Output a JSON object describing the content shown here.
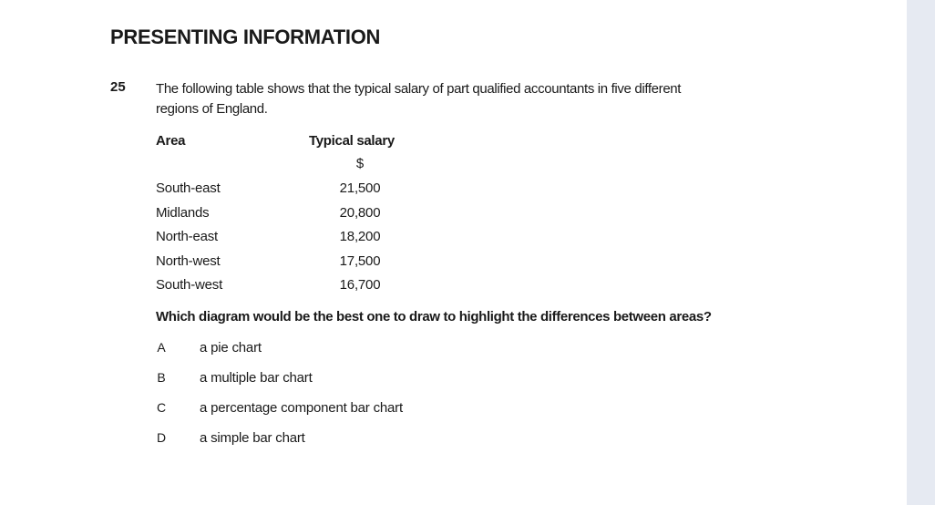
{
  "heading": "PRESENTING INFORMATION",
  "question": {
    "number": "25",
    "text_line1": "The following table shows that the typical salary of part qualified accountants in five different",
    "text_line2": "regions of England.",
    "table": {
      "headers": [
        "Area",
        "Typical salary"
      ],
      "unit": "$",
      "rows": [
        {
          "area": "South-east",
          "salary": "21,500"
        },
        {
          "area": "Midlands",
          "salary": "20,800"
        },
        {
          "area": "North-east",
          "salary": "18,200"
        },
        {
          "area": "North-west",
          "salary": "17,500"
        },
        {
          "area": "South-west",
          "salary": "16,700"
        }
      ]
    },
    "prompt": "Which diagram would be the best one to draw to highlight the differences between areas?",
    "options": [
      {
        "letter": "A",
        "text": "a pie chart"
      },
      {
        "letter": "B",
        "text": "a multiple bar chart"
      },
      {
        "letter": "C",
        "text": "a percentage component bar chart"
      },
      {
        "letter": "D",
        "text": "a simple bar chart"
      }
    ]
  }
}
